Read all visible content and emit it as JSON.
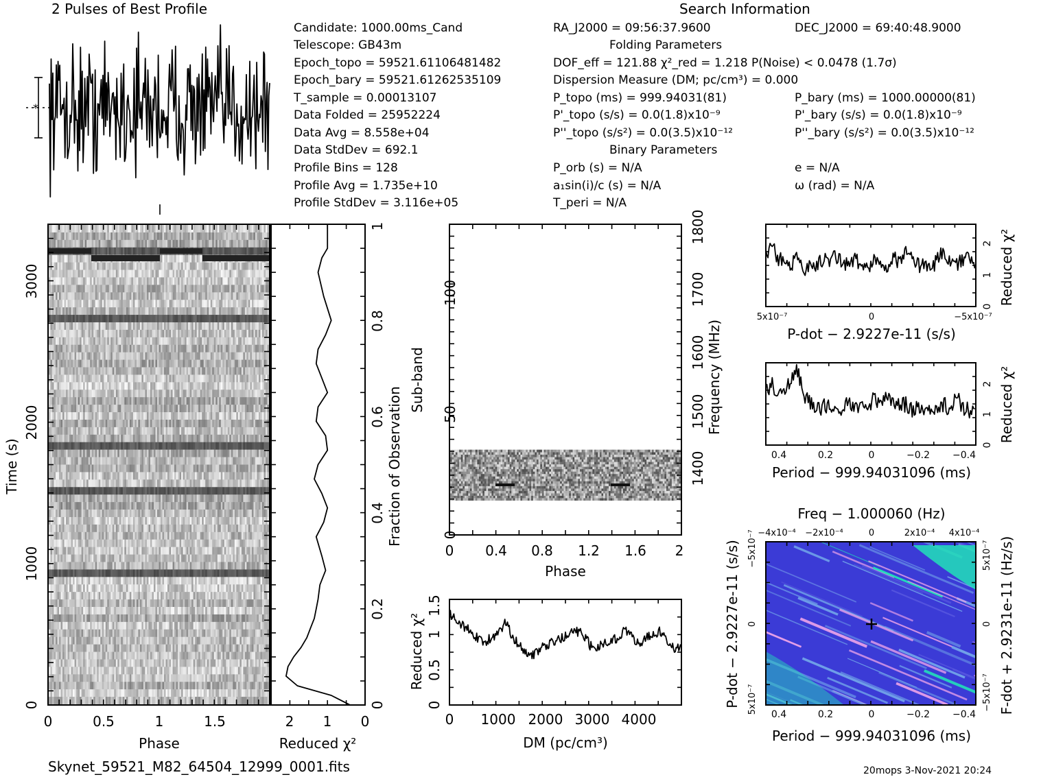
{
  "header": {
    "profile_title": "2 Pulses of Best Profile",
    "search_title": "Search Information",
    "fits_name": "Skynet_59521_M82_64504_12999_0001.fits",
    "footer_stamp": "20mops   3-Nov-2021  20:24"
  },
  "info": {
    "col1": [
      "Candidate:  1000.00ms_Cand",
      "Telescope:   GB43m",
      "Epoch_topo = 59521.61106481482",
      "Epoch_bary = 59521.61262535109",
      "T_sample        =   0.00013107",
      "Data Folded     =   25952224",
      "Data Avg        =   8.558e+04",
      "Data StdDev     =   692.1",
      "Profile Bins    =   128",
      "Profile Avg     =   1.735e+10",
      "Profile StdDev  =   3.116e+05"
    ],
    "col2": [
      "RA_J2000 = 09:56:37.9600",
      "Folding Parameters",
      "DOF_eff = 121.88  χ²_red = 1.218   P(Noise) < 0.0478  (1.7σ)",
      "Dispersion Measure (DM; pc/cm³) = 0.000",
      "P_topo (ms) =  999.94031(81)",
      "P'_topo (s/s) = 0.0(1.8)x10⁻⁹",
      "P''_topo (s/s²) = 0.0(3.5)x10⁻¹²",
      "Binary Parameters",
      "P_orb (s) = N/A",
      "a₁sin(i)/c (s) = N/A",
      "T_peri = N/A"
    ],
    "col3": [
      "DEC_J2000 = 69:40:48.9000",
      "P_bary (ms) =  1000.00000(81)",
      "P'_bary (s/s) = 0.0(1.8)x10⁻⁹",
      "P''_bary (s/s²) = 0.0(3.5)x10⁻¹²",
      "e = N/A",
      "ω (rad) = N/A"
    ]
  },
  "colors": {
    "ink": "#000000",
    "cmap_low": "#3b3bd6",
    "cmap_mid": "#6fa0e8",
    "cmap_high": "#22e2b8",
    "cmap_pink": "#e7a0e8"
  },
  "chart_data": [
    {
      "id": "pulse_profile",
      "type": "line",
      "title": "2 Pulses of Best Profile",
      "x": "phase 0–2, 256 samples (two repeats of the 128-bin profile)",
      "values_note": "noise-like profile, mean 1.735e+10, stddev 3.116e+05",
      "error_bar": "±1σ marker at left"
    },
    {
      "id": "time_phase",
      "type": "heatmap",
      "xlabel": "Phase",
      "ylabel": "Time (s)",
      "xlim": [
        0,
        2
      ],
      "ylim": [
        0,
        3400
      ],
      "xticks": [
        "0",
        "0.5",
        "1",
        "1.5"
      ],
      "yticks": [
        "0",
        "1000",
        "2000",
        "3000"
      ],
      "dark_rows_s": [
        3150,
        2680,
        1800,
        1460,
        880
      ]
    },
    {
      "id": "time_chi2",
      "type": "line",
      "xlabel": "Reduced χ²",
      "ylabel": "Fraction of Observation",
      "xlim": [
        2.5,
        0
      ],
      "ylim": [
        0,
        1
      ],
      "xticks": [
        "2",
        "1",
        "0"
      ],
      "yticks": [
        "0",
        "0.2",
        "0.4",
        "0.6",
        "0.8",
        "1"
      ],
      "x": [
        0.4,
        0.9,
        1.8,
        2.1,
        2.05,
        1.9,
        1.7,
        1.55,
        1.45,
        1.35,
        1.3,
        1.25,
        1.2,
        1.05,
        1.15,
        1.3,
        1.1,
        1.0,
        1.15,
        1.35,
        1.25,
        1.0,
        1.05,
        1.3,
        1.25,
        1.0,
        1.15,
        1.3,
        1.25,
        1.05,
        0.9,
        1.1,
        1.25,
        1.15,
        1.0,
        1.0
      ],
      "y": [
        0.0,
        0.02,
        0.04,
        0.06,
        0.08,
        0.1,
        0.12,
        0.14,
        0.16,
        0.18,
        0.2,
        0.22,
        0.25,
        0.28,
        0.31,
        0.35,
        0.38,
        0.41,
        0.44,
        0.47,
        0.5,
        0.53,
        0.56,
        0.59,
        0.62,
        0.65,
        0.68,
        0.71,
        0.74,
        0.77,
        0.8,
        0.85,
        0.9,
        0.93,
        0.95,
        1.0
      ]
    },
    {
      "id": "subband_phase",
      "type": "heatmap",
      "xlabel": "Phase",
      "ylabel": "Sub-band",
      "y2label": "Frequency (MHz)",
      "xlim": [
        0,
        2
      ],
      "ylim": [
        0,
        128
      ],
      "y2lim": [
        1345,
        1800
      ],
      "xticks": [
        "0",
        "0.4",
        "0.8",
        "1.2",
        "1.6",
        "2"
      ],
      "yticks": [
        "0",
        "50",
        "100"
      ],
      "y2ticks": [
        "1400",
        "1500",
        "1600",
        "1700",
        "1800"
      ],
      "filled_subbands": [
        14,
        35
      ]
    },
    {
      "id": "dm_chi2",
      "type": "line",
      "xlabel": "DM (pc/cm³)",
      "ylabel": "Reduced χ²",
      "xlim": [
        0,
        4950
      ],
      "ylim": [
        0,
        1.5
      ],
      "xticks": [
        "0",
        "1000",
        "2000",
        "3000",
        "4000"
      ],
      "yticks": [
        "0",
        "0.5",
        "1",
        "1.5"
      ],
      "x": [
        0,
        150,
        300,
        450,
        600,
        750,
        900,
        1050,
        1200,
        1350,
        1500,
        1650,
        1800,
        1950,
        2100,
        2250,
        2400,
        2550,
        2700,
        2850,
        3000,
        3150,
        3300,
        3450,
        3600,
        3750,
        3900,
        4050,
        4200,
        4350,
        4500,
        4650,
        4800,
        4950
      ],
      "values": [
        1.3,
        1.2,
        1.12,
        1.05,
        0.95,
        0.9,
        0.95,
        1.0,
        1.2,
        0.95,
        0.85,
        0.75,
        0.72,
        0.8,
        0.85,
        0.9,
        0.95,
        1.0,
        1.05,
        1.0,
        0.85,
        0.82,
        0.88,
        0.92,
        0.95,
        1.1,
        0.95,
        0.85,
        0.95,
        1.0,
        1.05,
        0.9,
        0.8,
        0.85
      ]
    },
    {
      "id": "pdot_chi2",
      "type": "line",
      "xlabel": "P-dot − 2.9227e-11 (s/s)",
      "ylabel": "Reduced χ²",
      "xlim": [
        5e-07,
        -5e-07
      ],
      "ylim": [
        0,
        2.6
      ],
      "xticks": [
        "5x10⁻⁷",
        "0",
        "−5x10⁻⁷"
      ],
      "yticks": [
        "0",
        "1",
        "2"
      ],
      "values": [
        1.6,
        1.9,
        1.5,
        1.4,
        1.3,
        1.5,
        1.2,
        1.4,
        1.3,
        1.5,
        1.4,
        1.6,
        1.4,
        1.3,
        1.5,
        1.3,
        1.2,
        1.4,
        1.5,
        1.3,
        1.6,
        1.4,
        1.7,
        1.5,
        1.3,
        1.4,
        1.2,
        1.5,
        1.8,
        1.4,
        1.3,
        1.5,
        1.6,
        1.4
      ]
    },
    {
      "id": "period_chi2",
      "type": "line",
      "xlabel": "Period − 999.94031096 (ms)",
      "ylabel": "Reduced χ²",
      "xlim": [
        0.45,
        -0.45
      ],
      "ylim": [
        0,
        2.6
      ],
      "xticks": [
        "0.4",
        "0.2",
        "0",
        "−0.2",
        "−0.4"
      ],
      "yticks": [
        "0",
        "1",
        "2"
      ],
      "values": [
        1.7,
        1.9,
        1.6,
        1.7,
        2.1,
        2.4,
        1.6,
        1.3,
        1.1,
        1.2,
        1.3,
        1.0,
        1.2,
        1.4,
        1.1,
        1.3,
        1.2,
        1.5,
        1.3,
        1.6,
        1.4,
        1.2,
        1.3,
        1.1,
        1.2,
        1.0,
        1.1,
        1.2,
        1.3,
        1.1,
        1.5,
        1.2,
        1.1,
        1.0
      ]
    },
    {
      "id": "p_pdot_plane",
      "type": "heatmap",
      "title": "Freq − 1.000060 (Hz)",
      "xlabel": "Period − 999.94031096 (ms)",
      "ylabel": "P-dot − 2.9227e-11 (s/s)",
      "y2label": "F-dot + 2.9231e-11 (Hz/s)",
      "xlim": [
        0.45,
        -0.45
      ],
      "ylim": [
        5e-07,
        -5e-07
      ],
      "xticks": [
        "0.4",
        "0.2",
        "0",
        "−0.2",
        "−0.4"
      ],
      "x2ticks": [
        "−4x10⁻⁴",
        "−2x10⁻⁴",
        "0",
        "2x10⁻⁴",
        "4x10⁻⁴"
      ],
      "yticks": [
        "−5x10⁻⁷",
        "0",
        "5x10⁻⁷"
      ],
      "y2ticks": [
        "5x10⁻⁷",
        "0",
        "−5x10⁻⁷"
      ],
      "best_fit_marker": [
        0,
        0
      ]
    }
  ]
}
